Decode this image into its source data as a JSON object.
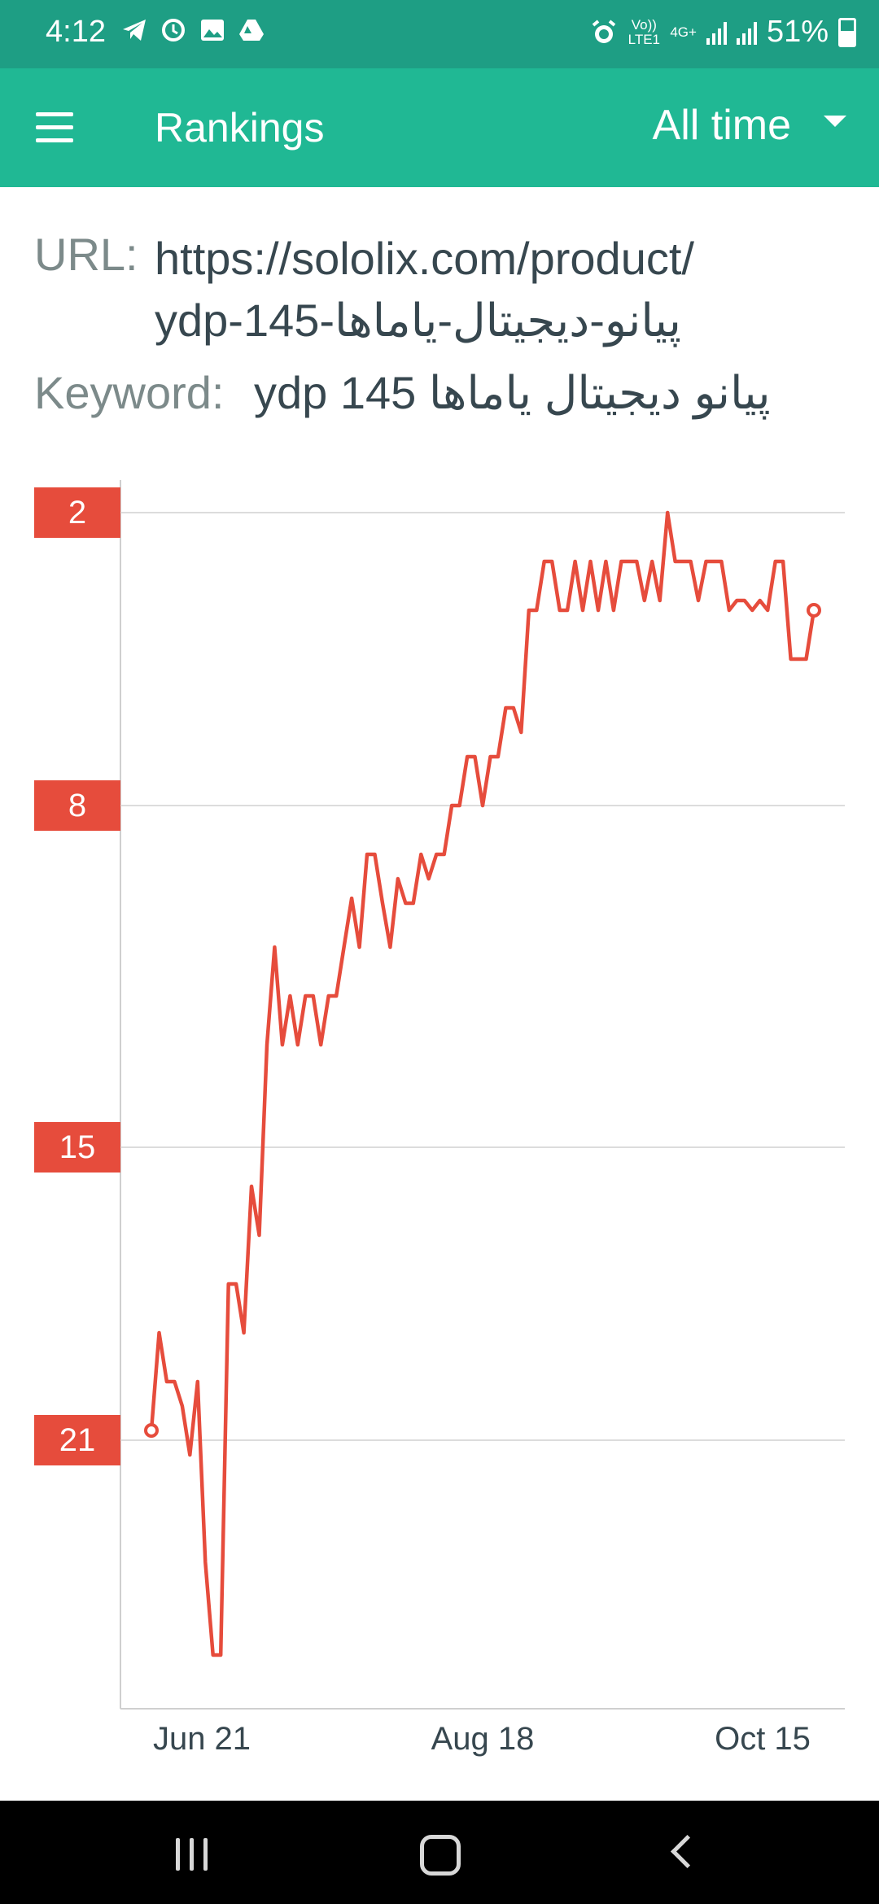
{
  "status_bar": {
    "time": "4:12",
    "left_icons": [
      "telegram-icon",
      "sync-icon",
      "gallery-icon",
      "drive-icon"
    ],
    "volte_text": "Vo)) LTE1",
    "network_text": "4G+",
    "battery": "51%"
  },
  "app_bar": {
    "title": "Rankings",
    "range_label": "All time",
    "color": "#20b894"
  },
  "info": {
    "url_label": "URL:",
    "url_line1": "https://sololix.com/product/",
    "url_line2": "پیانو-دیجیتال-یاماها-ydp-145",
    "keyword_label": "Keyword:",
    "keyword_value": "پیانو دیجیتال یاماها ydp 145"
  },
  "chart_data": {
    "type": "line",
    "title": "",
    "xlabel": "",
    "ylabel": "",
    "y_inverted": true,
    "ylim": [
      2,
      26
    ],
    "y_ticks": [
      2,
      8,
      15,
      21
    ],
    "x_ticks": [
      "Jun 21",
      "Aug 18",
      "Oct 15"
    ],
    "grid": true,
    "line_color": "#e64c3c",
    "series": [
      {
        "name": "",
        "values": [
          20.8,
          18.8,
          19.8,
          19.8,
          20.3,
          21.3,
          19.8,
          23.5,
          25.4,
          25.4,
          17.8,
          17.8,
          18.8,
          15.8,
          16.8,
          12.9,
          10.9,
          12.9,
          11.9,
          12.9,
          11.9,
          11.9,
          12.9,
          11.9,
          11.9,
          10.9,
          9.9,
          10.9,
          9.0,
          9.0,
          10.0,
          10.9,
          9.5,
          10.0,
          10.0,
          9.0,
          9.5,
          9.0,
          9.0,
          8.0,
          8.0,
          7.0,
          7.0,
          8.0,
          7.0,
          7.0,
          6.0,
          6.0,
          6.5,
          4.0,
          4.0,
          3.0,
          3.0,
          4.0,
          4.0,
          3.0,
          4.0,
          3.0,
          4.0,
          3.0,
          4.0,
          3.0,
          3.0,
          3.0,
          3.8,
          3.0,
          3.8,
          2.0,
          3.0,
          3.0,
          3.0,
          3.8,
          3.0,
          3.0,
          3.0,
          4.0,
          3.8,
          3.8,
          4.0,
          3.8,
          4.0,
          3.0,
          3.0,
          5.0,
          5.0,
          5.0,
          4.0
        ]
      }
    ]
  },
  "nav_bar": {
    "recent_icon": "recent-apps-icon",
    "home_icon": "home-icon",
    "back_icon": "back-icon"
  }
}
